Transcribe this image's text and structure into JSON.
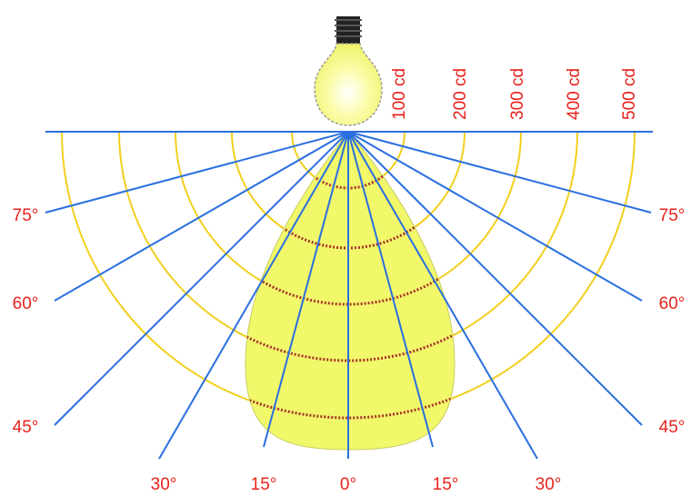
{
  "intensity_labels": [
    "100 cd",
    "200 cd",
    "300 cd",
    "400 cd",
    "500 cd"
  ],
  "angle_labels": {
    "left": [
      "75°",
      "60°",
      "45°"
    ],
    "right": [
      "75°",
      "60°",
      "45°"
    ],
    "bottom": [
      "30°",
      "15°",
      "0°",
      "15°",
      "30°"
    ]
  }
}
